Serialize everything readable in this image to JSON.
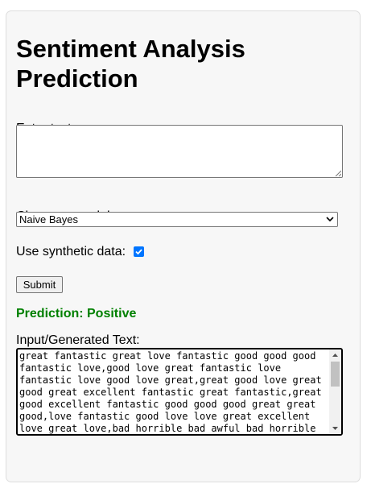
{
  "page": {
    "title": "Sentiment Analysis Prediction"
  },
  "form": {
    "text_label": "Enter text:",
    "text_value": "",
    "model_label": "Choose a model:",
    "model_selected": "Naive Bayes",
    "synthetic_label": "Use synthetic data:",
    "synthetic_checked": true,
    "submit_label": "Submit"
  },
  "result": {
    "prediction": "Prediction: Positive",
    "prediction_color": "#008000",
    "generated_label": "Input/Generated Text:",
    "generated_text": "great fantastic great love fantastic good good good fantastic love,good love great fantastic love fantastic love good love great,great good love great good great excellent fantastic great fantastic,great good excellent fantastic good good good great great good,love fantastic good love love great excellent love great love,bad horrible bad awful bad horrible"
  },
  "colors": {
    "accent": "#0075ff",
    "card_background": "#f7f7f7"
  }
}
